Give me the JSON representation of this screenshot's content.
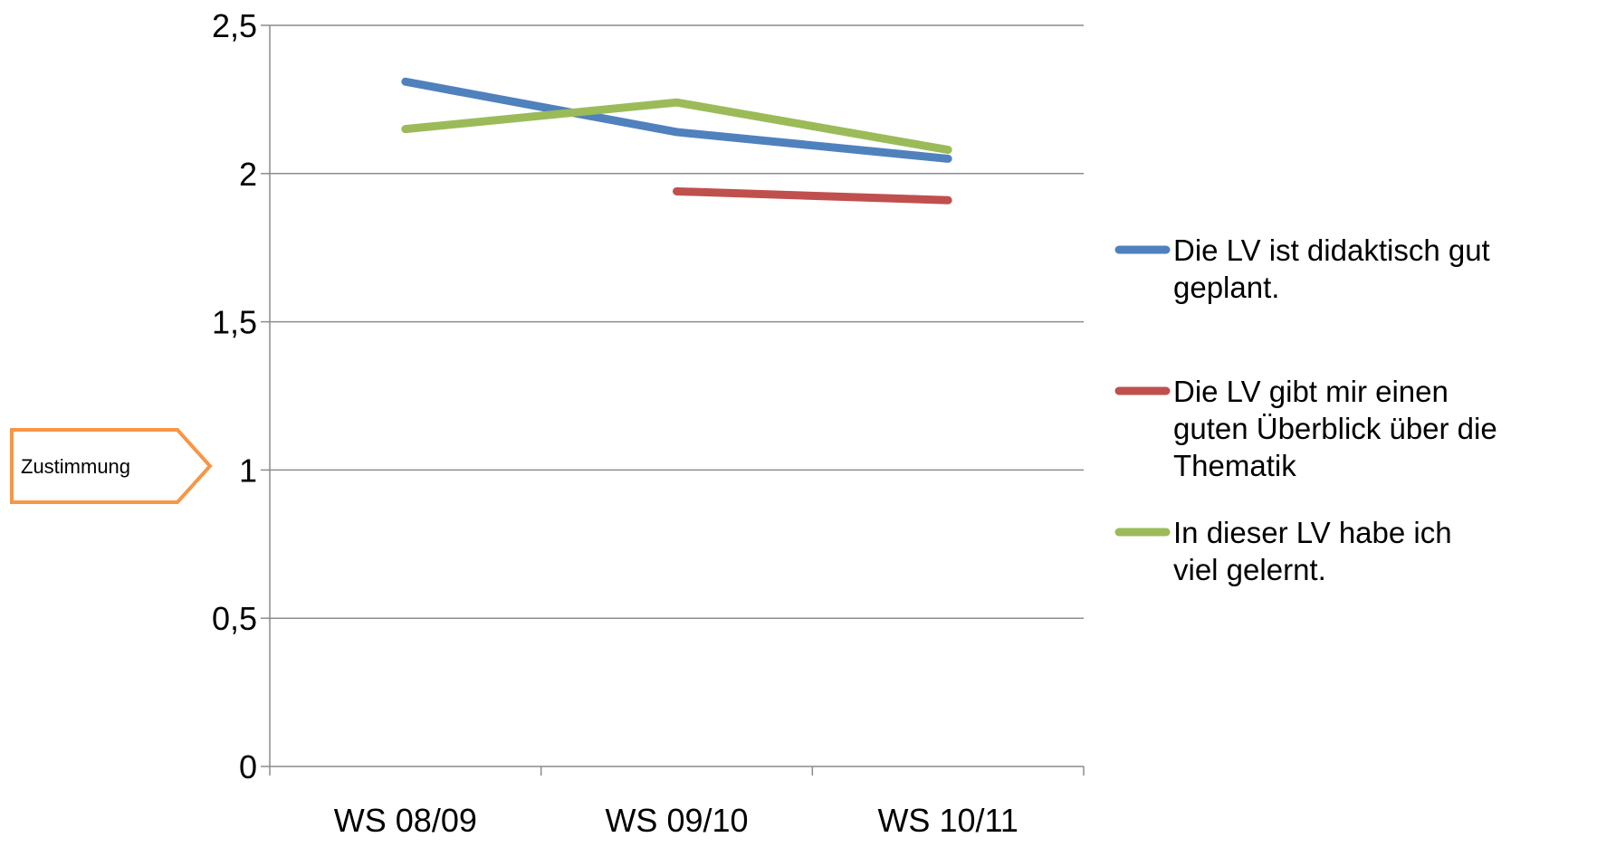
{
  "chart_data": {
    "type": "line",
    "categories": [
      "WS 08/09",
      "WS 09/10",
      "WS 10/11"
    ],
    "y_ticks": [
      "0",
      "0,5",
      "1",
      "1,5",
      "2",
      "2,5"
    ],
    "ylim": [
      0,
      2.5
    ],
    "grid": true,
    "legend_position": "right",
    "ylabel": "Zustimmung",
    "series": [
      {
        "name_lines": [
          "Die LV ist didaktisch gut",
          "geplant."
        ],
        "color": "#4F81BD",
        "values": [
          2.31,
          2.14,
          2.05
        ]
      },
      {
        "name_lines": [
          "Die LV gibt mir einen",
          "guten Überblick über die",
          "Thematik"
        ],
        "color": "#C0504D",
        "values": [
          null,
          1.94,
          1.91
        ]
      },
      {
        "name_lines": [
          "In dieser LV habe ich",
          "viel gelernt."
        ],
        "color": "#9BBB59",
        "values": [
          2.15,
          2.24,
          2.08
        ]
      }
    ],
    "callout_color": "#F79646"
  }
}
